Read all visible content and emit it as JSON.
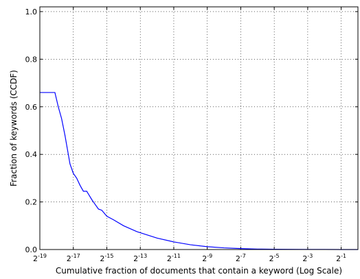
{
  "chart_data": {
    "type": "line",
    "title": "",
    "xlabel": "Cumulative fraction of documents that contain a keyword (Log Scale)",
    "ylabel": "Fraction of keywords (CCDF)",
    "x_scale": "log2",
    "xlim": [
      -19,
      0
    ],
    "ylim": [
      0,
      1.02
    ],
    "grid": true,
    "grid_style": "dotted",
    "line_color": "#0000ff",
    "x_ticks": [
      {
        "base": "2",
        "exp": "-19",
        "value": -19
      },
      {
        "base": "2",
        "exp": "-17",
        "value": -17
      },
      {
        "base": "2",
        "exp": "-15",
        "value": -15
      },
      {
        "base": "2",
        "exp": "-13",
        "value": -13
      },
      {
        "base": "2",
        "exp": "-11",
        "value": -11
      },
      {
        "base": "2",
        "exp": "-9",
        "value": -9
      },
      {
        "base": "2",
        "exp": "-7",
        "value": -7
      },
      {
        "base": "2",
        "exp": "-5",
        "value": -5
      },
      {
        "base": "2",
        "exp": "-3",
        "value": -3
      },
      {
        "base": "2",
        "exp": "-1",
        "value": -1
      }
    ],
    "y_ticks": [
      {
        "label": "0.0",
        "value": 0.0
      },
      {
        "label": "0.2",
        "value": 0.2
      },
      {
        "label": "0.4",
        "value": 0.4
      },
      {
        "label": "0.6",
        "value": 0.6
      },
      {
        "label": "0.8",
        "value": 0.8
      },
      {
        "label": "1.0",
        "value": 1.0
      }
    ],
    "series": [
      {
        "x_log2": [
          -19,
          -18.4,
          -18.1,
          -17.9,
          -17.7,
          -17.5,
          -17.3,
          -17.2,
          -17.0,
          -16.8,
          -16.6,
          -16.4,
          -16.2,
          -15.9,
          -15.7,
          -15.5,
          -15.3,
          -15.0,
          -14.6,
          -14.0,
          -13.2,
          -12.0,
          -11.0,
          -10.0,
          -9.0,
          -8.0,
          -7.0,
          -6.0,
          -5.0,
          -4.0,
          -3.0,
          -2.0,
          -1.0,
          0.0
        ],
        "y": [
          0.66,
          0.66,
          0.66,
          0.6,
          0.55,
          0.48,
          0.4,
          0.36,
          0.32,
          0.3,
          0.27,
          0.245,
          0.245,
          0.21,
          0.19,
          0.17,
          0.165,
          0.14,
          0.125,
          0.1,
          0.075,
          0.048,
          0.032,
          0.02,
          0.012,
          0.007,
          0.004,
          0.002,
          0.0012,
          0.0008,
          0.0005,
          0.0003,
          0.0001,
          0.0
        ]
      }
    ]
  }
}
